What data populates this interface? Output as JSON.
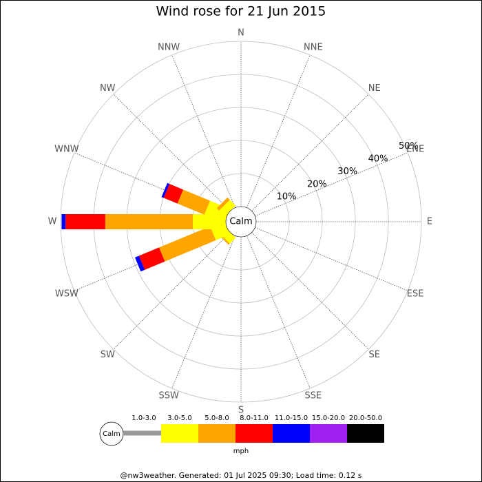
{
  "chart_data": {
    "type": "windrose",
    "title": "Wind rose for 21 Jun 2015",
    "categories": [
      "N",
      "NNE",
      "NE",
      "ENE",
      "E",
      "ESE",
      "SE",
      "SSE",
      "S",
      "SSW",
      "SW",
      "WSW",
      "W",
      "WNW",
      "NW",
      "NNW"
    ],
    "calm_label": "Calm",
    "series": [
      {
        "name": "1.0-3.0",
        "color": "#999999",
        "values": [
          0,
          0,
          0,
          0,
          0,
          0,
          0,
          0,
          0,
          0,
          0,
          0,
          0,
          0,
          0,
          0
        ]
      },
      {
        "name": "3.0-5.0",
        "color": "#ffff00",
        "values": [
          0,
          0,
          0,
          0,
          0,
          0,
          0,
          0,
          0,
          0,
          2.5,
          4.6,
          10,
          6.5,
          2.5,
          0
        ]
      },
      {
        "name": "5.0-8.0",
        "color": "#ffa500",
        "values": [
          0,
          0,
          0,
          0,
          0,
          0,
          0,
          0,
          0,
          0,
          0.5,
          16.7,
          26.5,
          8.8,
          1,
          0
        ]
      },
      {
        "name": "8.0-11.0",
        "color": "#ff0000",
        "values": [
          0,
          0,
          0,
          0,
          0,
          0,
          0,
          0,
          0,
          0,
          0,
          6.6,
          12,
          4.5,
          0,
          0
        ]
      },
      {
        "name": "11.0-15.0",
        "color": "#0000ff",
        "values": [
          0,
          0,
          0,
          0,
          0,
          0,
          0,
          0,
          0,
          0,
          0,
          1.3,
          1.2,
          0.7,
          0,
          0
        ]
      },
      {
        "name": "15.0-20.0",
        "color": "#a020f0",
        "values": [
          0,
          0,
          0,
          0,
          0,
          0,
          0,
          0,
          0,
          0,
          0,
          0,
          0,
          0,
          0,
          0
        ]
      },
      {
        "name": "20.0-50.0",
        "color": "#000000",
        "values": [
          0,
          0,
          0,
          0,
          0,
          0,
          0,
          0,
          0,
          0,
          0,
          0,
          0,
          0,
          0,
          0
        ]
      }
    ],
    "rlim": [
      0,
      50
    ],
    "rticks": [
      {
        "value": 10,
        "label": "10%"
      },
      {
        "value": 20,
        "label": "20%"
      },
      {
        "value": 30,
        "label": "30%"
      },
      {
        "value": 40,
        "label": "40%"
      },
      {
        "value": 50,
        "label": "50%"
      }
    ],
    "unit": "mph",
    "footer": "@nw3weather. Generated: 01 Jul 2025 09:30; Load time: 0.12 s"
  }
}
